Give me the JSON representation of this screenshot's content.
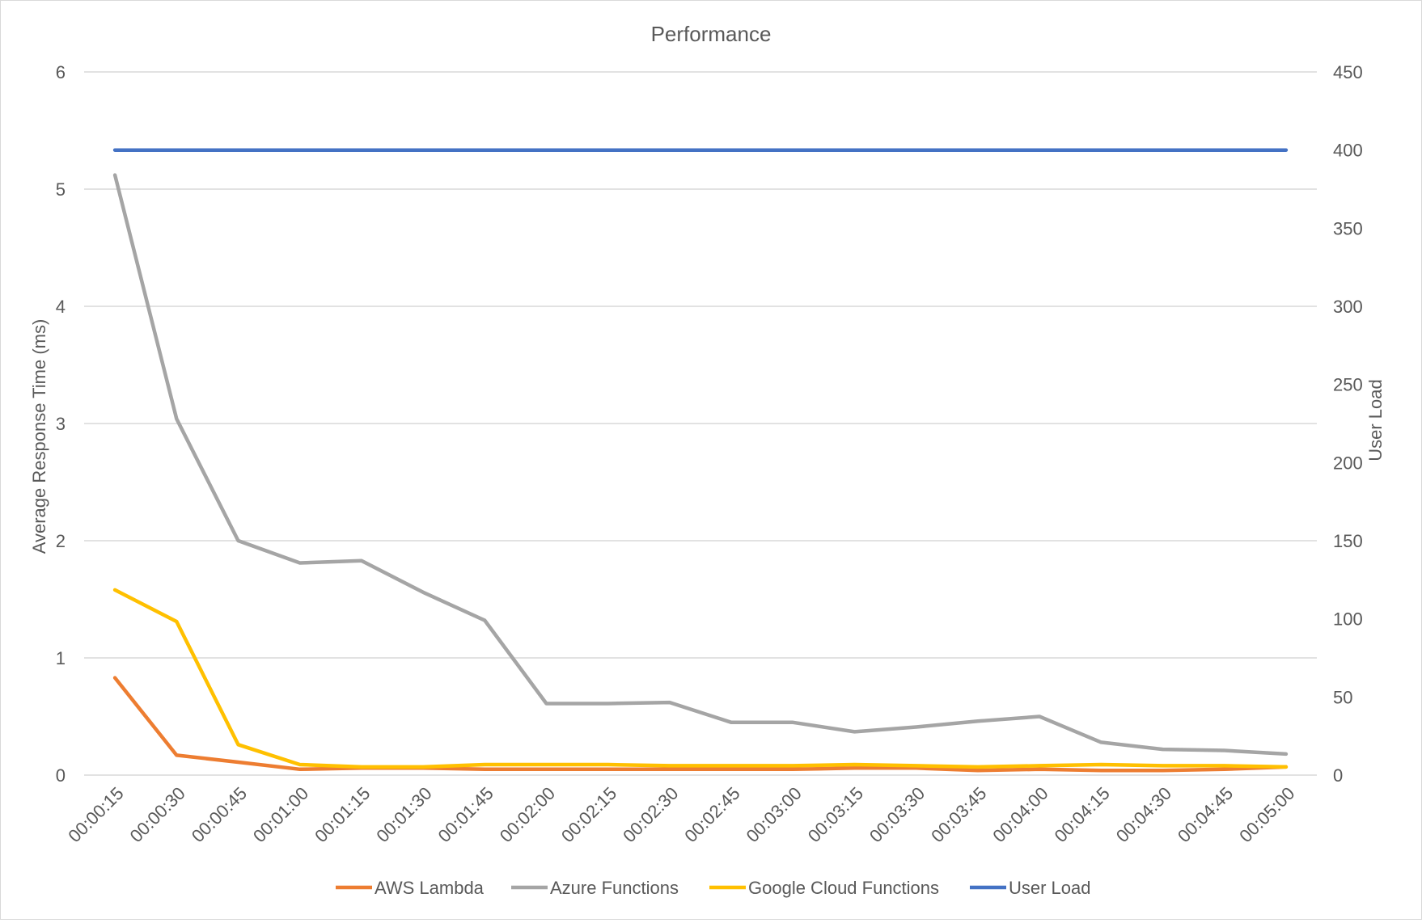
{
  "chart_data": {
    "type": "line",
    "title": "Performance",
    "ylabel": "Average Response Time (ms)",
    "y2label": "User Load",
    "ylim": [
      0,
      6
    ],
    "y2lim": [
      0,
      450
    ],
    "yticks": [
      "0",
      "1",
      "2",
      "3",
      "4",
      "5",
      "6"
    ],
    "y2ticks": [
      "0",
      "50",
      "100",
      "150",
      "200",
      "250",
      "300",
      "350",
      "400",
      "450"
    ],
    "categories": [
      "00:00:15",
      "00:00:30",
      "00:00:45",
      "00:01:00",
      "00:01:15",
      "00:01:30",
      "00:01:45",
      "00:02:00",
      "00:02:15",
      "00:02:30",
      "00:02:45",
      "00:03:00",
      "00:03:15",
      "00:03:30",
      "00:03:45",
      "00:04:00",
      "00:04:15",
      "00:04:30",
      "00:04:45",
      "00:05:00"
    ],
    "grid": true,
    "legend_position": "bottom",
    "series": [
      {
        "name": "AWS Lambda",
        "axis": "left",
        "color": "#ED7D31",
        "values": [
          0.83,
          0.17,
          0.11,
          0.05,
          0.06,
          0.06,
          0.05,
          0.05,
          0.05,
          0.05,
          0.05,
          0.05,
          0.06,
          0.06,
          0.04,
          0.05,
          0.04,
          0.04,
          0.05,
          0.07
        ]
      },
      {
        "name": "Azure Functions",
        "axis": "left",
        "color": "#A5A5A5",
        "values": [
          5.12,
          3.04,
          2.0,
          1.81,
          1.83,
          1.56,
          1.32,
          0.61,
          0.61,
          0.62,
          0.45,
          0.45,
          0.37,
          0.41,
          0.46,
          0.5,
          0.28,
          0.22,
          0.21,
          0.18
        ]
      },
      {
        "name": "Google Cloud Functions",
        "axis": "left",
        "color": "#FFC000",
        "values": [
          1.58,
          1.31,
          0.26,
          0.09,
          0.07,
          0.07,
          0.09,
          0.09,
          0.09,
          0.08,
          0.08,
          0.08,
          0.09,
          0.08,
          0.07,
          0.08,
          0.09,
          0.08,
          0.08,
          0.07
        ]
      },
      {
        "name": "User Load",
        "axis": "right",
        "color": "#4472C4",
        "values": [
          400,
          400,
          400,
          400,
          400,
          400,
          400,
          400,
          400,
          400,
          400,
          400,
          400,
          400,
          400,
          400,
          400,
          400,
          400,
          400
        ]
      }
    ]
  }
}
